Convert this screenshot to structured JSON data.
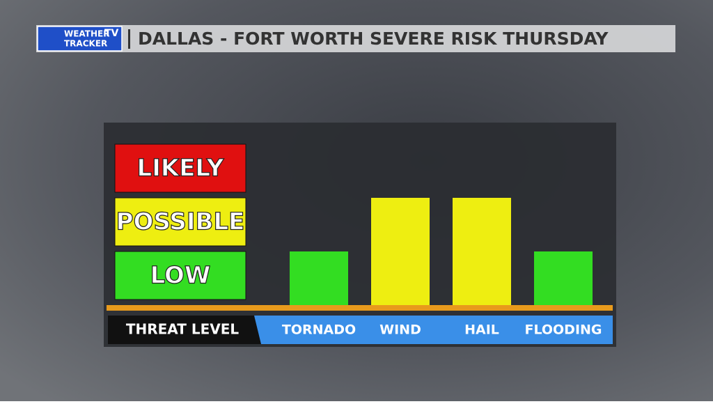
{
  "logo": {
    "line1": "WEATHER",
    "badge": "TV",
    "line2": "TRACKER"
  },
  "chart_data": {
    "type": "bar",
    "title": "DALLAS - FORT WORTH SEVERE RISK THURSDAY",
    "y_label": "THREAT LEVEL",
    "categories": [
      "TORNADO",
      "WIND",
      "HAIL",
      "FLOODING"
    ],
    "values": [
      1,
      2,
      2,
      1
    ],
    "colors": [
      "#33dd22",
      "#eeee11",
      "#eeee11",
      "#33dd22"
    ],
    "ylim": [
      0,
      3
    ],
    "yticks": [
      {
        "value": 1,
        "label": "LOW"
      },
      {
        "value": 2,
        "label": "POSSIBLE"
      },
      {
        "value": 3,
        "label": "LIKELY"
      }
    ],
    "tick_colors": [
      "#33dd22",
      "#eeee11",
      "#e01010"
    ]
  }
}
